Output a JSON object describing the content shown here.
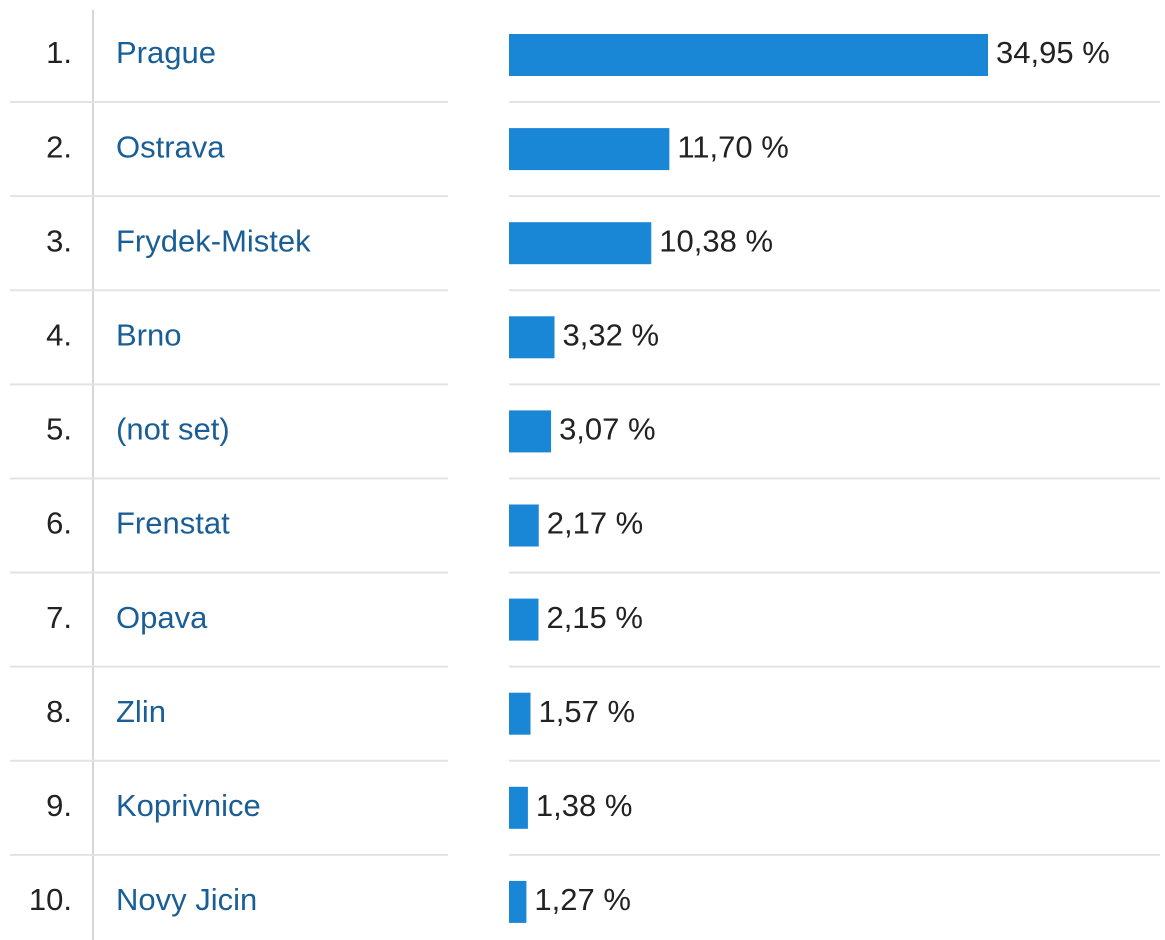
{
  "chart_data": {
    "type": "bar",
    "orientation": "horizontal",
    "ranks": [
      "1.",
      "2.",
      "3.",
      "4.",
      "5.",
      "6.",
      "7.",
      "8.",
      "9.",
      "10."
    ],
    "categories": [
      "Prague",
      "Ostrava",
      "Frydek-Mistek",
      "Brno",
      "(not set)",
      "Frenstat",
      "Opava",
      "Zlin",
      "Koprivnice",
      "Novy Jicin"
    ],
    "values": [
      34.95,
      11.7,
      10.38,
      3.32,
      3.07,
      2.17,
      2.15,
      1.57,
      1.38,
      1.27
    ],
    "value_labels": [
      "34,95 %",
      "11,70 %",
      "10,38 %",
      "3,32 %",
      "3,07 %",
      "2,17 %",
      "2,15 %",
      "1,57 %",
      "1,38 %",
      "1,27 %"
    ],
    "color": "#1a86d6",
    "label_color": "#1a5e96"
  }
}
